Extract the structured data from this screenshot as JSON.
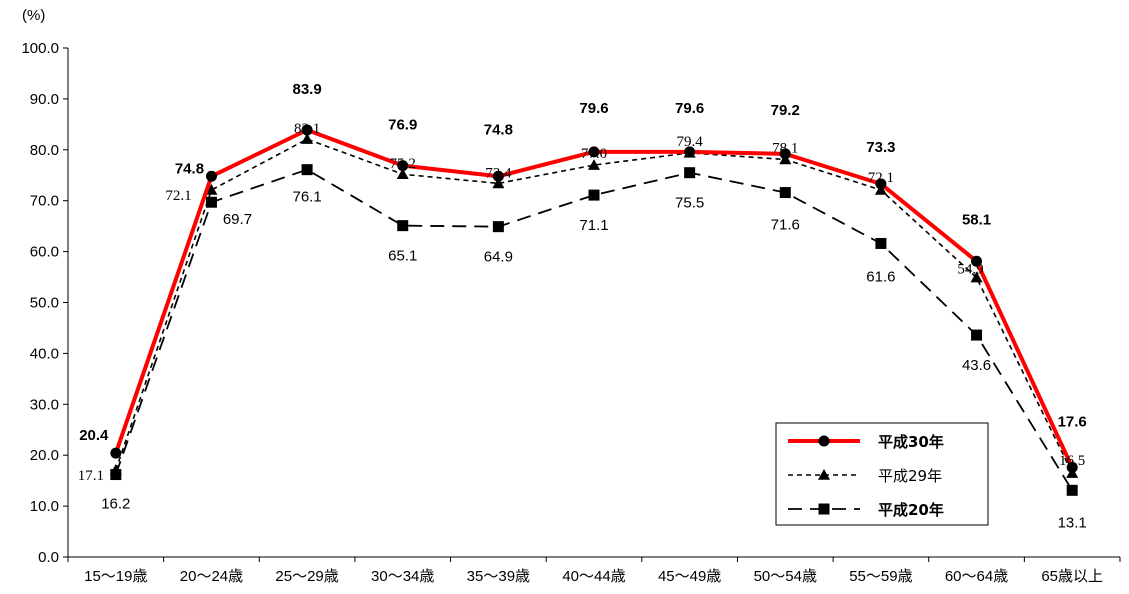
{
  "chart_data": {
    "type": "line",
    "title": "",
    "xlabel": "",
    "ylabel": "",
    "y_unit": "(%)",
    "ylim": [
      0,
      100
    ],
    "y_ticks": [
      "0.0",
      "10.0",
      "20.0",
      "30.0",
      "40.0",
      "50.0",
      "60.0",
      "70.0",
      "80.0",
      "90.0",
      "100.0"
    ],
    "categories": [
      "15～19歳",
      "20～24歳",
      "25～29歳",
      "30～34歳",
      "35～39歳",
      "40～44歳",
      "45～49歳",
      "50～54歳",
      "55～59歳",
      "60～64歳",
      "65歳以上"
    ],
    "grid": false,
    "legend_position": "bottom-right",
    "series": [
      {
        "name": "平成30年",
        "values": [
          20.4,
          74.8,
          83.9,
          76.9,
          74.8,
          79.6,
          79.6,
          79.2,
          73.3,
          58.1,
          17.6
        ],
        "labels": [
          "20.4",
          "74.8",
          "83.9",
          "76.9",
          "74.8",
          "79.6",
          "79.6",
          "79.2",
          "73.3",
          "58.1",
          "17.6"
        ],
        "color": "#ff0000",
        "marker": "circle",
        "line_style": "solid"
      },
      {
        "name": "平成29年",
        "values": [
          17.1,
          72.1,
          82.1,
          75.2,
          73.4,
          77.0,
          79.4,
          78.1,
          72.1,
          54.9,
          16.5
        ],
        "labels": [
          "17.1",
          "72.1",
          "82.1",
          "75.2",
          "73.4",
          "77.0",
          "79.4",
          "78.1",
          "72.1",
          "54.9",
          "16.5"
        ],
        "color": "#000000",
        "marker": "triangle",
        "line_style": "dotted"
      },
      {
        "name": "平成20年",
        "values": [
          16.2,
          69.7,
          76.1,
          65.1,
          64.9,
          71.1,
          75.5,
          71.6,
          61.6,
          43.6,
          13.1
        ],
        "labels": [
          "16.2",
          "69.7",
          "76.1",
          "65.1",
          "64.9",
          "71.1",
          "75.5",
          "71.6",
          "61.6",
          "43.6",
          "13.1"
        ],
        "color": "#000000",
        "marker": "square",
        "line_style": "dashed"
      }
    ]
  }
}
